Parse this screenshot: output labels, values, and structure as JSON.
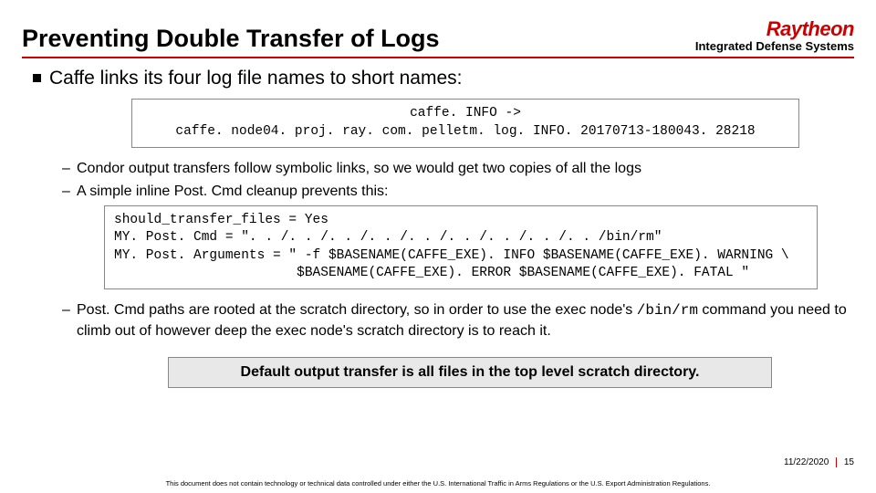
{
  "header": {
    "title": "Preventing Double Transfer of Logs",
    "brand_name": "Raytheon",
    "brand_sub": "Integrated Defense Systems",
    "rule_color": "#cc0000"
  },
  "bullet_main": "Caffe links its four log file names to short names:",
  "codebox1": "caffe. INFO ->\ncaffe. node04. proj. ray. com. pelletm. log. INFO. 20170713-180043. 28218",
  "sub1": "Condor output transfers follow symbolic links, so we would get two copies of all the logs",
  "sub2": "A simple inline Post. Cmd cleanup prevents this:",
  "codebox2": "should_transfer_files = Yes\nMY. Post. Cmd = \". . /. . /. . /. . /. . /. . /. . /. . /. . /bin/rm\"\nMY. Post. Arguments = \" -f $BASENAME(CAFFE_EXE). INFO $BASENAME(CAFFE_EXE). WARNING \\\n                       $BASENAME(CAFFE_EXE). ERROR $BASENAME(CAFFE_EXE). FATAL \"",
  "sub3_pre": "Post. Cmd paths are rooted at the scratch directory, so in order to use the exec node's ",
  "sub3_mono": "/bin/rm",
  "sub3_post": " command you need to climb out of however deep the exec node's scratch directory is to reach it.",
  "callout": "Default output transfer is all files in the top level scratch directory.",
  "footer": {
    "date": "11/22/2020",
    "page": "15",
    "disclaimer": "This document does not contain technology or technical data controlled under either the U.S. International Traffic in Arms Regulations or the U.S. Export Administration Regulations."
  }
}
